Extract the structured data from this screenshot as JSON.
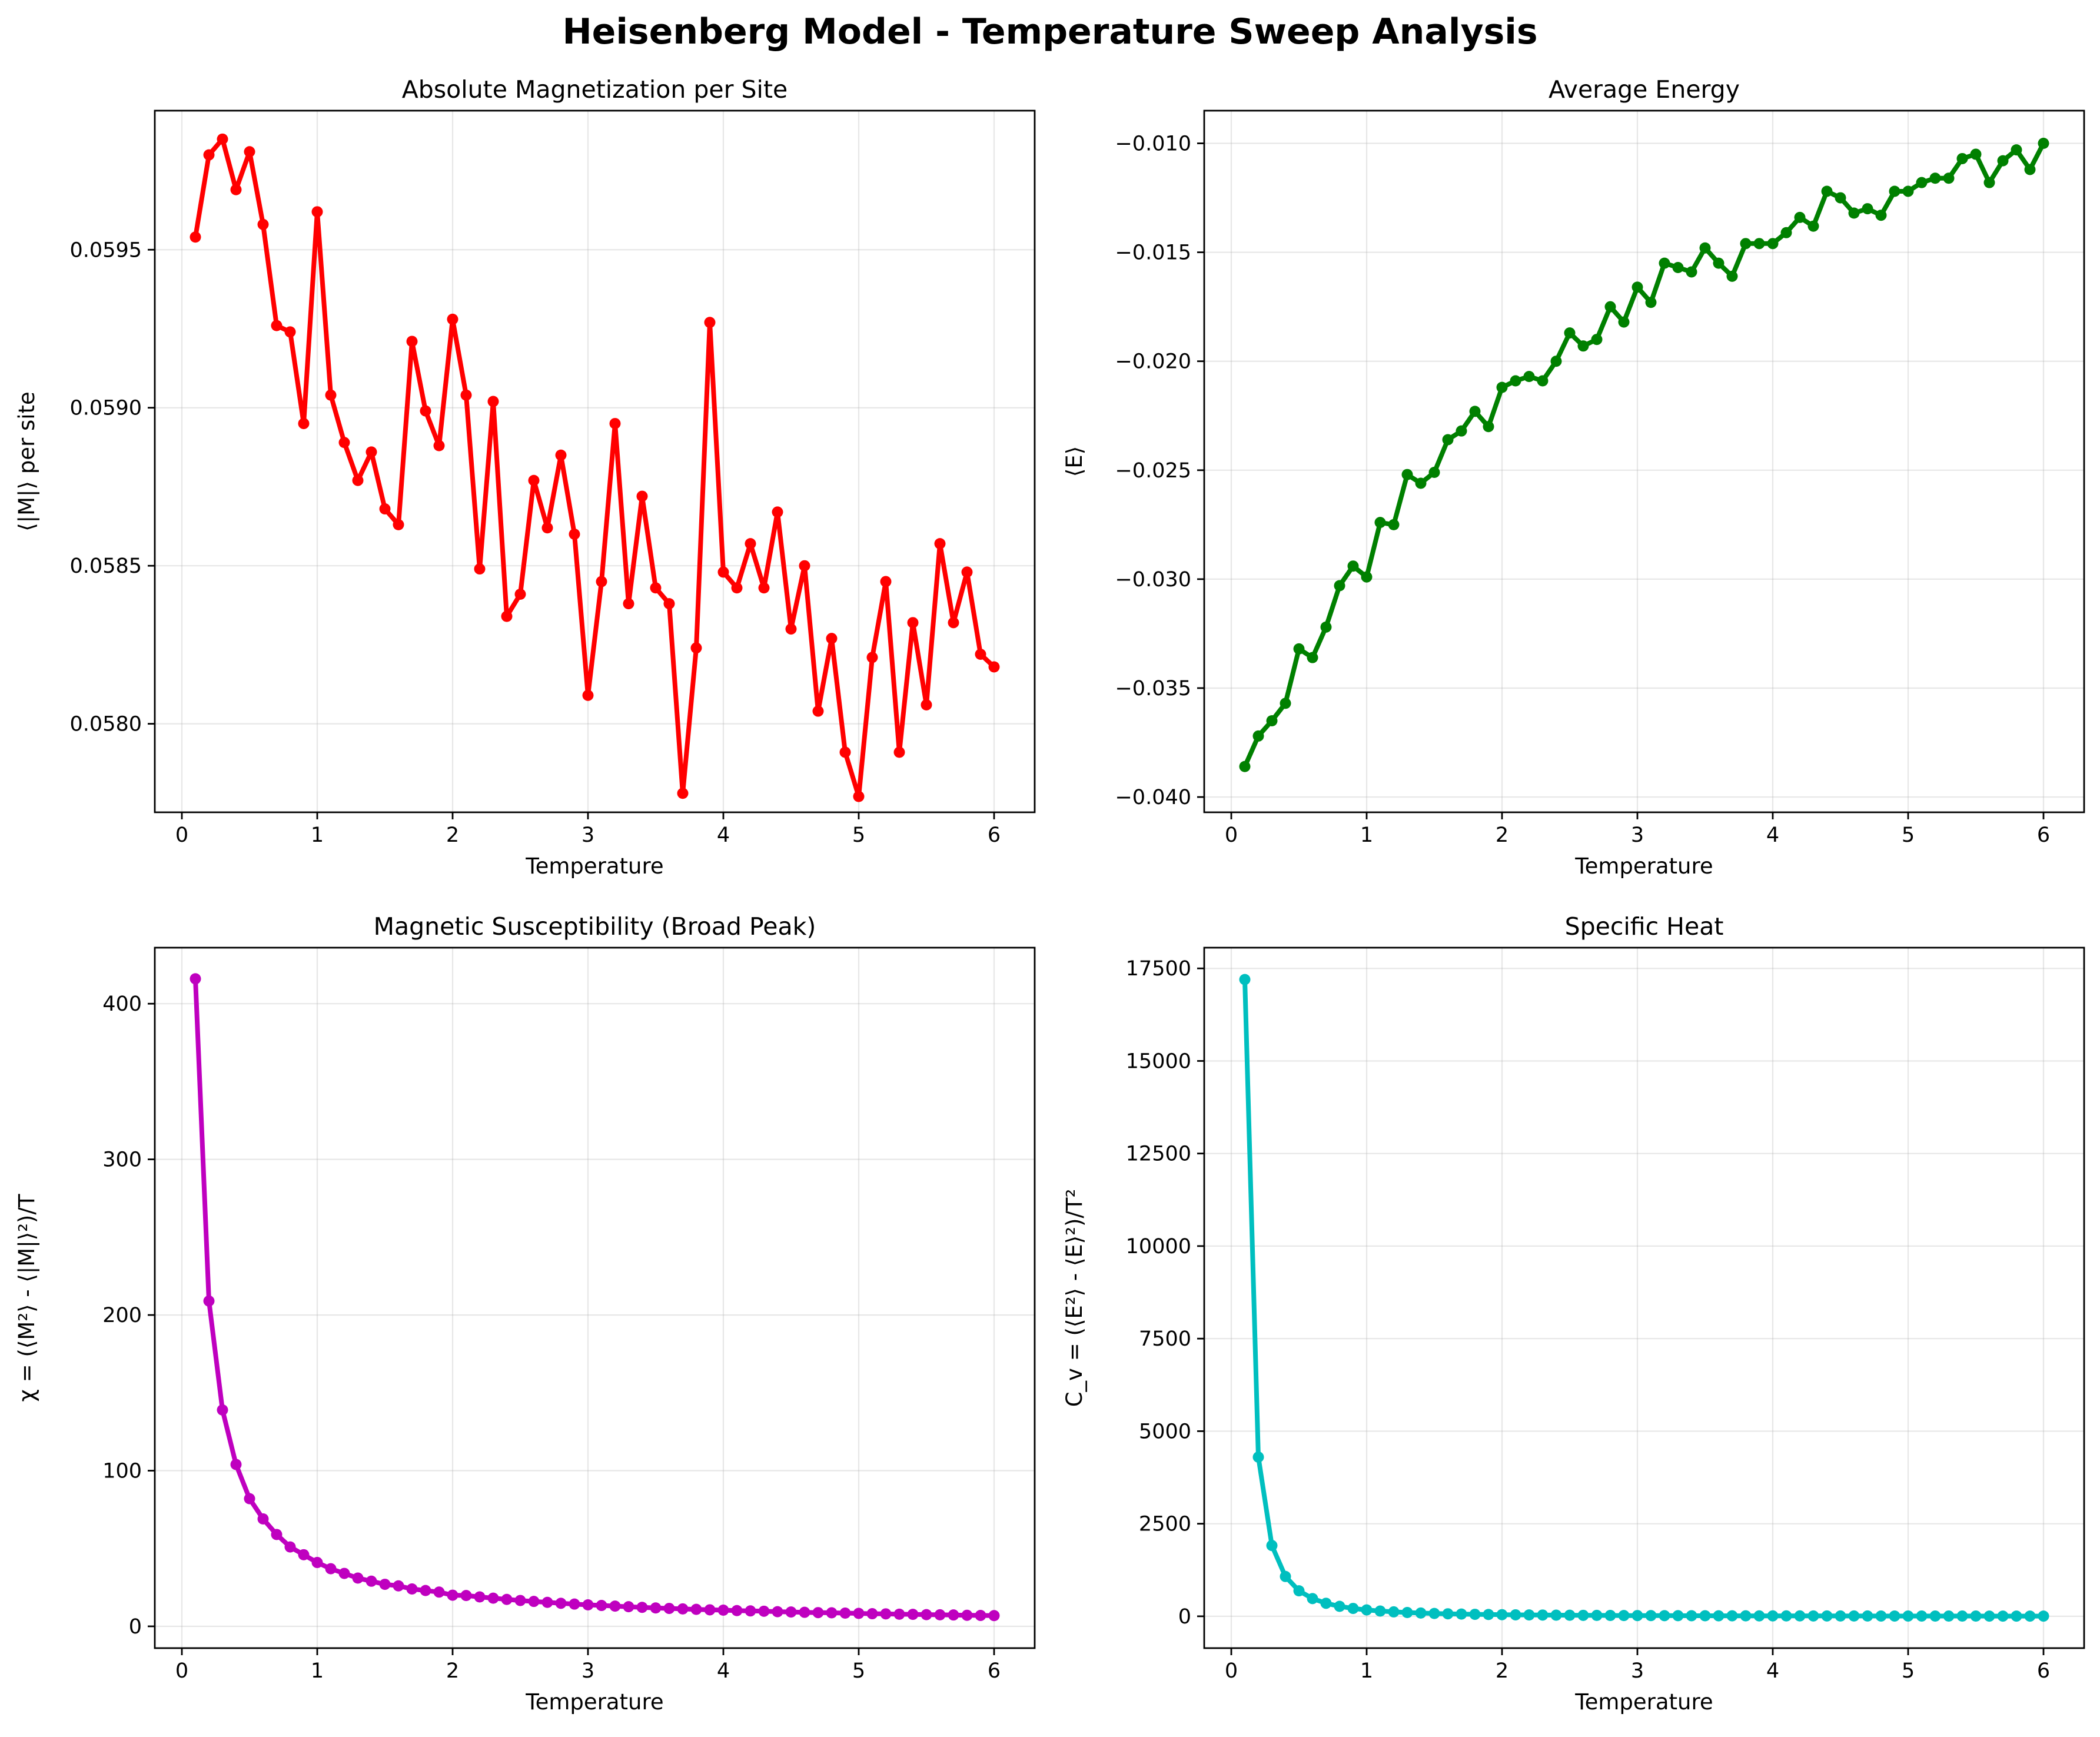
{
  "figure": {
    "title": "Heisenberg Model - Temperature Sweep Analysis"
  },
  "chart_data": [
    {
      "type": "line",
      "title": "Absolute Magnetization per Site",
      "xlabel": "Temperature",
      "ylabel": "⟨|M|⟩ per site",
      "xlim": [
        -0.2,
        6.3
      ],
      "ylim": [
        0.05772,
        0.05994
      ],
      "xticks": [
        0,
        1,
        2,
        3,
        4,
        5,
        6
      ],
      "xtick_labels": [
        "0",
        "1",
        "2",
        "3",
        "4",
        "5",
        "6"
      ],
      "yticks": [
        0.058,
        0.0585,
        0.059,
        0.0595
      ],
      "ytick_labels": [
        "0.0580",
        "0.0585",
        "0.0590",
        "0.0595"
      ],
      "grid": true,
      "color": "#ff0000",
      "series": [
        {
          "x": [
            0.1,
            0.2,
            0.3,
            0.4,
            0.5,
            0.6,
            0.7,
            0.8,
            0.9,
            1.0,
            1.1,
            1.2,
            1.3,
            1.4,
            1.5,
            1.6,
            1.7,
            1.8,
            1.9,
            2.0,
            2.1,
            2.2,
            2.3,
            2.4,
            2.5,
            2.6,
            2.7,
            2.8,
            2.9,
            3.0,
            3.1,
            3.2,
            3.3,
            3.4,
            3.5,
            3.6,
            3.7,
            3.8,
            3.9,
            4.0,
            4.1,
            4.2,
            4.3,
            4.4,
            4.5,
            4.6,
            4.7,
            4.8,
            4.9,
            5.0,
            5.1,
            5.2,
            5.3,
            5.4,
            5.5,
            5.6,
            5.7,
            5.8,
            5.9,
            6.0
          ],
          "y": [
            0.05954,
            0.0598,
            0.05985,
            0.05969,
            0.05981,
            0.05958,
            0.05926,
            0.05924,
            0.05895,
            0.05962,
            0.05904,
            0.05889,
            0.05877,
            0.05886,
            0.05868,
            0.05863,
            0.05921,
            0.05899,
            0.05888,
            0.05928,
            0.05904,
            0.05849,
            0.05902,
            0.05834,
            0.05841,
            0.05877,
            0.05862,
            0.05885,
            0.0586,
            0.05809,
            0.05845,
            0.05895,
            0.05838,
            0.05872,
            0.05843,
            0.05838,
            0.05778,
            0.05824,
            0.05927,
            0.05848,
            0.05843,
            0.05857,
            0.05843,
            0.05867,
            0.0583,
            0.0585,
            0.05804,
            0.05827,
            0.05791,
            0.05777,
            0.05821,
            0.05845,
            0.05791,
            0.05832,
            0.05806,
            0.05857,
            0.05832,
            0.05848,
            0.05822,
            0.05818
          ]
        }
      ]
    },
    {
      "type": "line",
      "title": "Average Energy",
      "xlabel": "Temperature",
      "ylabel": "⟨E⟩",
      "xlim": [
        -0.2,
        6.3
      ],
      "ylim": [
        -0.0407,
        -0.0085
      ],
      "xticks": [
        0,
        1,
        2,
        3,
        4,
        5,
        6
      ],
      "xtick_labels": [
        "0",
        "1",
        "2",
        "3",
        "4",
        "5",
        "6"
      ],
      "yticks": [
        -0.04,
        -0.035,
        -0.03,
        -0.025,
        -0.02,
        -0.015,
        -0.01
      ],
      "ytick_labels": [
        "−0.040",
        "−0.035",
        "−0.030",
        "−0.025",
        "−0.020",
        "−0.015",
        "−0.010"
      ],
      "grid": true,
      "color": "#008000",
      "series": [
        {
          "x": [
            0.1,
            0.2,
            0.3,
            0.4,
            0.5,
            0.6,
            0.7,
            0.8,
            0.9,
            1.0,
            1.1,
            1.2,
            1.3,
            1.4,
            1.5,
            1.6,
            1.7,
            1.8,
            1.9,
            2.0,
            2.1,
            2.2,
            2.3,
            2.4,
            2.5,
            2.6,
            2.7,
            2.8,
            2.9,
            3.0,
            3.1,
            3.2,
            3.3,
            3.4,
            3.5,
            3.6,
            3.7,
            3.8,
            3.9,
            4.0,
            4.1,
            4.2,
            4.3,
            4.4,
            4.5,
            4.6,
            4.7,
            4.8,
            4.9,
            5.0,
            5.1,
            5.2,
            5.3,
            5.4,
            5.5,
            5.6,
            5.7,
            5.8,
            5.9,
            6.0
          ],
          "y": [
            -0.0386,
            -0.0372,
            -0.0365,
            -0.0357,
            -0.0332,
            -0.0336,
            -0.0322,
            -0.0303,
            -0.0294,
            -0.0299,
            -0.0274,
            -0.0275,
            -0.0252,
            -0.0256,
            -0.0251,
            -0.0236,
            -0.0232,
            -0.0223,
            -0.023,
            -0.0212,
            -0.0209,
            -0.0207,
            -0.0209,
            -0.02,
            -0.0187,
            -0.0193,
            -0.019,
            -0.0175,
            -0.0182,
            -0.0166,
            -0.0173,
            -0.0155,
            -0.0157,
            -0.0159,
            -0.0148,
            -0.0155,
            -0.0161,
            -0.0146,
            -0.0146,
            -0.0146,
            -0.0141,
            -0.0134,
            -0.0138,
            -0.0122,
            -0.0125,
            -0.0132,
            -0.013,
            -0.0133,
            -0.0122,
            -0.0122,
            -0.0118,
            -0.0116,
            -0.0116,
            -0.0107,
            -0.0105,
            -0.0118,
            -0.0108,
            -0.0103,
            -0.0112,
            -0.01
          ]
        }
      ]
    },
    {
      "type": "line",
      "title": "Magnetic Susceptibility (Broad Peak)",
      "xlabel": "Temperature",
      "ylabel": "χ = (⟨M²⟩ - ⟨|M|⟩²)/T",
      "xlim": [
        -0.2,
        6.3
      ],
      "ylim": [
        -14,
        436
      ],
      "xticks": [
        0,
        1,
        2,
        3,
        4,
        5,
        6
      ],
      "xtick_labels": [
        "0",
        "1",
        "2",
        "3",
        "4",
        "5",
        "6"
      ],
      "yticks": [
        0,
        100,
        200,
        300,
        400
      ],
      "ytick_labels": [
        "0",
        "100",
        "200",
        "300",
        "400"
      ],
      "grid": true,
      "color": "#bf00bf",
      "series": [
        {
          "x": [
            0.1,
            0.2,
            0.3,
            0.4,
            0.5,
            0.6,
            0.7,
            0.8,
            0.9,
            1.0,
            1.1,
            1.2,
            1.3,
            1.4,
            1.5,
            1.6,
            1.7,
            1.8,
            1.9,
            2.0,
            2.1,
            2.2,
            2.3,
            2.4,
            2.5,
            2.6,
            2.7,
            2.8,
            2.9,
            3.0,
            3.1,
            3.2,
            3.3,
            3.4,
            3.5,
            3.6,
            3.7,
            3.8,
            3.9,
            4.0,
            4.1,
            4.2,
            4.3,
            4.4,
            4.5,
            4.6,
            4.7,
            4.8,
            4.9,
            5.0,
            5.1,
            5.2,
            5.3,
            5.4,
            5.5,
            5.6,
            5.7,
            5.8,
            5.9,
            6.0
          ],
          "y": [
            416,
            209,
            139,
            104,
            82,
            69,
            59,
            51,
            46,
            41,
            37,
            34,
            31,
            29,
            27,
            26,
            24,
            23,
            22,
            20,
            19.8,
            18.9,
            18.1,
            17.3,
            16.6,
            16.0,
            15.4,
            14.8,
            14.3,
            13.8,
            13.4,
            13.0,
            12.6,
            12.2,
            11.8,
            11.5,
            11.2,
            10.9,
            10.6,
            10.4,
            10.1,
            9.9,
            9.7,
            9.4,
            9.2,
            9.0,
            8.8,
            8.7,
            8.5,
            8.3,
            8.1,
            8.0,
            7.8,
            7.7,
            7.5,
            7.4,
            7.3,
            7.1,
            7.0,
            6.9
          ]
        }
      ]
    },
    {
      "type": "line",
      "title": "Specific Heat",
      "xlabel": "Temperature",
      "ylabel": "C_v = (⟨E²⟩ - ⟨E⟩²)/T²",
      "xlim": [
        -0.2,
        6.3
      ],
      "ylim": [
        -860,
        18060
      ],
      "xticks": [
        0,
        1,
        2,
        3,
        4,
        5,
        6
      ],
      "xtick_labels": [
        "0",
        "1",
        "2",
        "3",
        "4",
        "5",
        "6"
      ],
      "yticks": [
        0,
        2500,
        5000,
        7500,
        10000,
        12500,
        15000,
        17500
      ],
      "ytick_labels": [
        "0",
        "2500",
        "5000",
        "7500",
        "10000",
        "12500",
        "15000",
        "17500"
      ],
      "grid": true,
      "color": "#00bfbf",
      "series": [
        {
          "x": [
            0.1,
            0.2,
            0.3,
            0.4,
            0.5,
            0.6,
            0.7,
            0.8,
            0.9,
            1.0,
            1.1,
            1.2,
            1.3,
            1.4,
            1.5,
            1.6,
            1.7,
            1.8,
            1.9,
            2.0,
            2.1,
            2.2,
            2.3,
            2.4,
            2.5,
            2.6,
            2.7,
            2.8,
            2.9,
            3.0,
            3.1,
            3.2,
            3.3,
            3.4,
            3.5,
            3.6,
            3.7,
            3.8,
            3.9,
            4.0,
            4.1,
            4.2,
            4.3,
            4.4,
            4.5,
            4.6,
            4.7,
            4.8,
            4.9,
            5.0,
            5.1,
            5.2,
            5.3,
            5.4,
            5.5,
            5.6,
            5.7,
            5.8,
            5.9,
            6.0
          ],
          "y": [
            17200,
            4300,
            1911,
            1075,
            688,
            478,
            351,
            269,
            212,
            172,
            142,
            119,
            102,
            88,
            76,
            67,
            60,
            53,
            48,
            43,
            39,
            36,
            33,
            30,
            28,
            25,
            24,
            22,
            20,
            19,
            18,
            17,
            16,
            15,
            14,
            13,
            13,
            12,
            11,
            11,
            10,
            10,
            9,
            9,
            8,
            8,
            8,
            7,
            7,
            7,
            7,
            6,
            6,
            6,
            6,
            5,
            5,
            5,
            5,
            5
          ]
        }
      ]
    }
  ]
}
